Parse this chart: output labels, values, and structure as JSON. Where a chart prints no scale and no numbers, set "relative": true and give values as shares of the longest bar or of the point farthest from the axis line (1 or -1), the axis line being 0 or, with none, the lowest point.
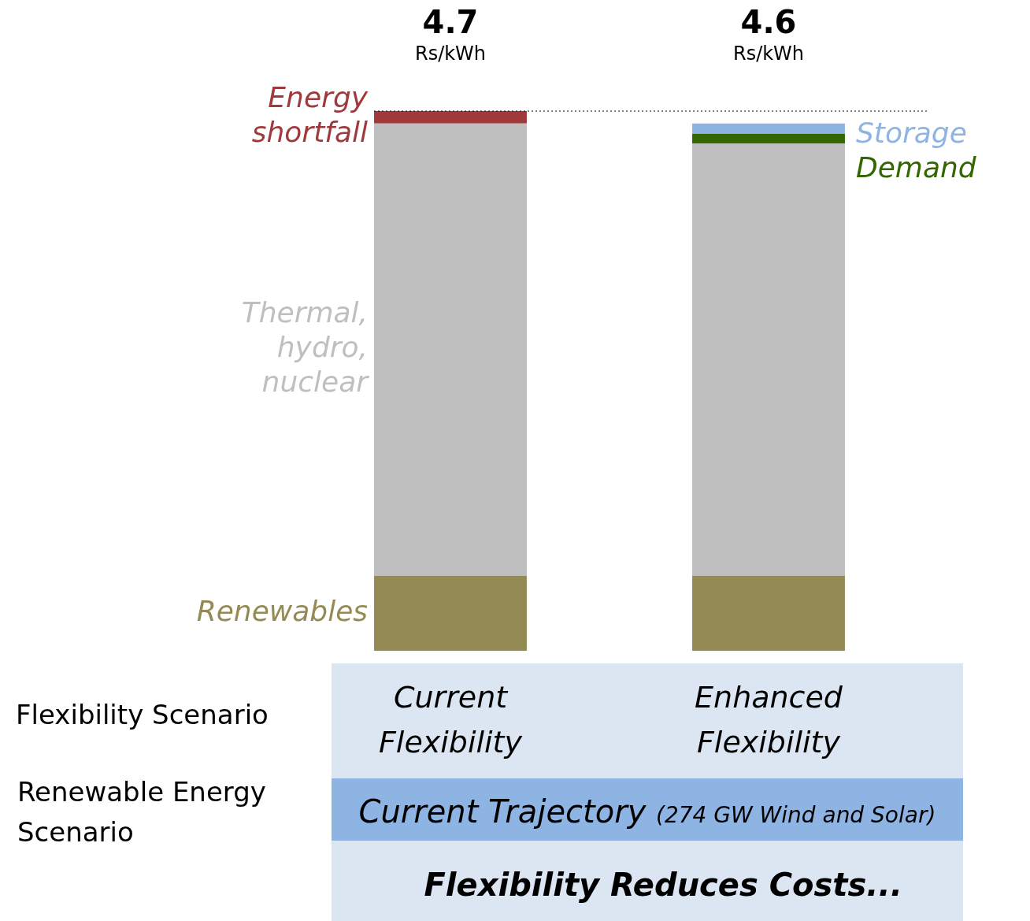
{
  "chart_data": {
    "type": "bar",
    "relative": true,
    "stacked": true,
    "legend": false,
    "grid": false,
    "categories": [
      "Current Flexibility",
      "Enhanced Flexibility"
    ],
    "series": [
      {
        "name": "Renewables",
        "color": "#948a54",
        "values": [
          0.139,
          0.139
        ]
      },
      {
        "name": "Thermal, hydro, nuclear",
        "color": "#bfbfbf",
        "values": [
          0.838,
          0.801
        ]
      },
      {
        "name": "Demand",
        "color": "#336600",
        "values": [
          0,
          0.018
        ]
      },
      {
        "name": "Storage",
        "color": "#8eb4e3",
        "values": [
          0,
          0.019
        ]
      },
      {
        "name": "Energy shortfall",
        "color": "#a0393c",
        "values": [
          0.023,
          0
        ]
      }
    ],
    "ref_lines": [
      {
        "axis": "y",
        "value": 1,
        "line_style": "dotted",
        "color": "#000000"
      }
    ],
    "annotations": [
      "4.7 Rs/kWh",
      "4.6 Rs/kWh",
      "Flexibility Scenario",
      "Renewable Energy Scenario",
      "Current Trajectory (274 GW Wind and Solar)",
      "Flexibility Reduces Costs..."
    ]
  }
}
